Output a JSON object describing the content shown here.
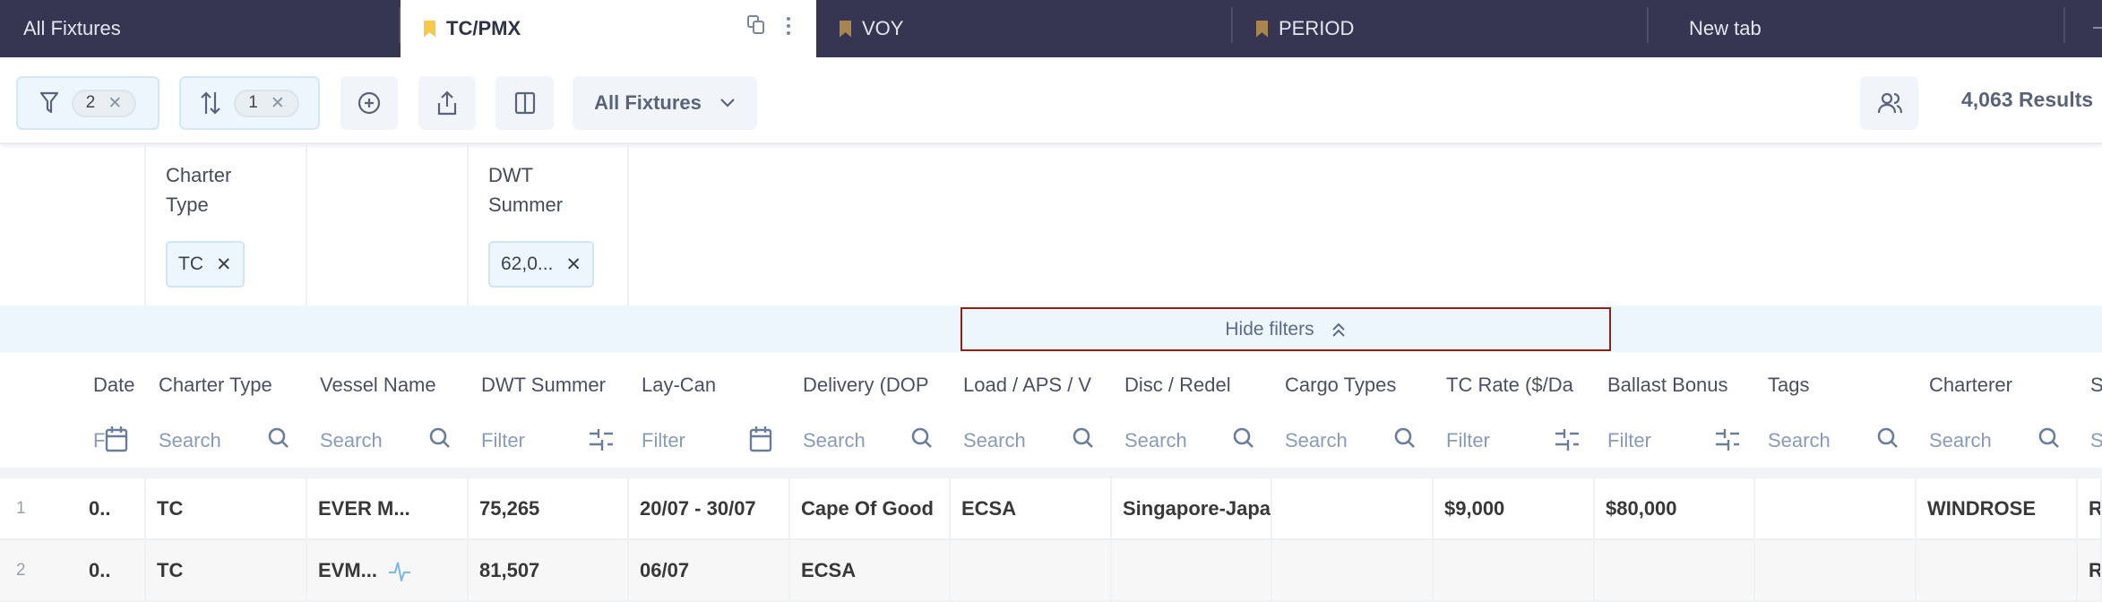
{
  "tabs": [
    {
      "label": "All Fixtures",
      "bookmark": false
    },
    {
      "label": "TC/PMX",
      "bookmark": true,
      "active": true,
      "bookmark_color": "#f7c948"
    },
    {
      "label": "VOY",
      "bookmark": true,
      "bookmark_color": "#a98650"
    },
    {
      "label": "PERIOD",
      "bookmark": true,
      "bookmark_color": "#a98650"
    },
    {
      "label": "New tab",
      "bookmark": false
    }
  ],
  "toolbar": {
    "filter_count": "2",
    "sort_count": "1",
    "view_label": "All Fixtures",
    "results": "4,063 Results"
  },
  "filters": [
    {
      "label": "Charter Type",
      "chip": "TC"
    },
    {
      "label": "",
      "chip": ""
    },
    {
      "label": "DWT Summer",
      "chip": "62,0..."
    }
  ],
  "hide_filters": "Hide filters",
  "columns": [
    {
      "title": "Date",
      "placeholder": "F",
      "icon": "calendar"
    },
    {
      "title": "Charter Type",
      "placeholder": "Search",
      "icon": "search"
    },
    {
      "title": "Vessel Name",
      "placeholder": "Search",
      "icon": "search"
    },
    {
      "title": "DWT Summer",
      "placeholder": "Filter",
      "icon": "sliders"
    },
    {
      "title": "Lay-Can",
      "placeholder": "Filter",
      "icon": "calendar"
    },
    {
      "title": "Delivery (DOP",
      "placeholder": "Search",
      "icon": "search"
    },
    {
      "title": "Load / APS / V",
      "placeholder": "Search",
      "icon": "search"
    },
    {
      "title": "Disc / Redel",
      "placeholder": "Search",
      "icon": "search"
    },
    {
      "title": "Cargo Types",
      "placeholder": "Search",
      "icon": "search"
    },
    {
      "title": "TC Rate ($/Da",
      "placeholder": "Filter",
      "icon": "sliders"
    },
    {
      "title": "Ballast Bonus",
      "placeholder": "Filter",
      "icon": "sliders"
    },
    {
      "title": "Tags",
      "placeholder": "Search",
      "icon": "search"
    },
    {
      "title": "Charterer",
      "placeholder": "Search",
      "icon": "search"
    },
    {
      "title": "S",
      "placeholder": "S",
      "icon": ""
    }
  ],
  "rows": [
    {
      "num": "1",
      "cells": [
        "0..",
        "TC",
        "EVER M...",
        "75,265",
        "20/07 - 30/07",
        "Cape Of Good",
        "ECSA",
        "Singapore-Japan",
        "",
        "$9,000",
        "$80,000",
        "",
        "WINDROSE",
        "R"
      ]
    },
    {
      "num": "2",
      "cells": [
        "0..",
        "TC",
        "EVM...",
        "81,507",
        "06/07",
        "ECSA",
        "",
        "",
        "",
        "",
        "",
        "",
        "",
        "R"
      ],
      "activity_icon": true
    }
  ]
}
